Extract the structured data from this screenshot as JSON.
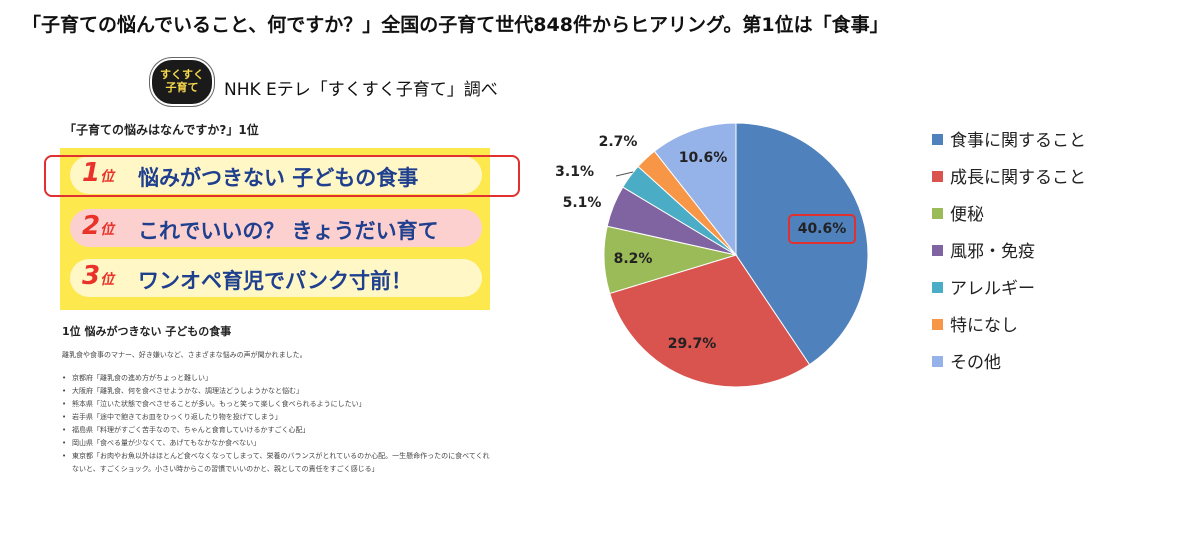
{
  "headline": "「子育ての悩んでいること、何ですか？」全国の子育て世代848件からヒアリング。第1位は「食事」",
  "logo": {
    "line1": "すくすく",
    "line2": "子育て"
  },
  "source": "NHK Eテレ「すくすく子育て」調べ",
  "survey": {
    "question": "「子育ての悩みはなんですか?」1位",
    "ranks": [
      {
        "num": "1",
        "unit": "位",
        "text": "悩みがつきない 子どもの食事"
      },
      {
        "num": "2",
        "unit": "位",
        "text": "これでいいの？ きょうだい育て"
      },
      {
        "num": "3",
        "unit": "位",
        "text": "ワンオペ育児でパンク寸前！"
      }
    ],
    "subheading": "1位 悩みがつきない 子どもの食事",
    "intro": "離乳食や食事のマナー、好き嫌いなど、さまざまな悩みの声が聞かれました。",
    "comments": [
      "京都府「離乳食の進め方がちょっと難しい」",
      "大阪府「離乳食、何を食べさせようかな、調理法どうしようかなと悩む」",
      "熊本県「泣いた状態で食べさせることが多い。もっと笑って楽しく食べられるようにしたい」",
      "岩手県「途中で飽きてお皿をひっくり返したり物を投げてしまう」",
      "福島県「料理がすごく苦手なので、ちゃんと食育していけるかすごく心配」",
      "岡山県「食べる量が少なくて、あげてもなかなか食べない」",
      "東京都「お肉やお魚以外はほとんど食べなくなってしまって、栄養のバランスがとれているのか心配。一生懸命作ったのに食べてくれないと、すごくショック。小さい時からこの習慣でいいのかと、親としての責任をすごく感じる」"
    ]
  },
  "chart_data": {
    "type": "pie",
    "title": "",
    "start_angle_deg": 0,
    "direction": "clockwise",
    "highlighted": "食事に関すること",
    "slices": [
      {
        "label": "食事に関すること",
        "value": 40.6,
        "value_label": "40.6%",
        "color": "#4f81bd"
      },
      {
        "label": "成長に関すること",
        "value": 29.7,
        "value_label": "29.7%",
        "color": "#d9534f"
      },
      {
        "label": "便秘",
        "value": 8.2,
        "value_label": "8.2%",
        "color": "#9bbb59"
      },
      {
        "label": "風邪・免疫",
        "value": 5.1,
        "value_label": "5.1%",
        "color": "#8064a2"
      },
      {
        "label": "アレルギー",
        "value": 3.1,
        "value_label": "3.1%",
        "color": "#4bacc6"
      },
      {
        "label": "特になし",
        "value": 2.7,
        "value_label": "2.7%",
        "color": "#f79646"
      },
      {
        "label": "その他",
        "value": 10.6,
        "value_label": "10.6%",
        "color": "#95b3e8"
      }
    ],
    "legend_position": "right"
  }
}
